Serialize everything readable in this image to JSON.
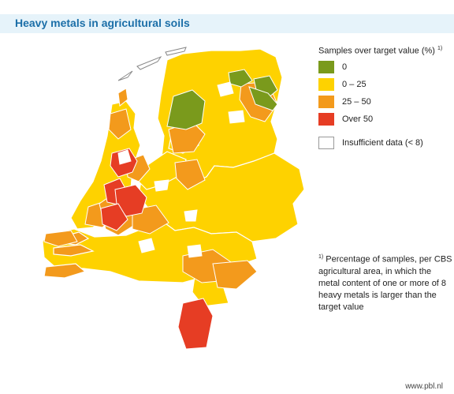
{
  "title": "Heavy metals in agricultural soils",
  "legend": {
    "title": "Samples over target value (%)",
    "note_marker": "1)",
    "items": [
      {
        "label": "0",
        "color": "#7a9a1c"
      },
      {
        "label": "0 – 25",
        "color": "#fed200"
      },
      {
        "label": "25 – 50",
        "color": "#f39a1c"
      },
      {
        "label": "Over 50",
        "color": "#e63d24"
      }
    ],
    "insufficient": {
      "label": "Insufficient data (< 8)",
      "color": "#ffffff"
    }
  },
  "footnote": {
    "marker": "1)",
    "text": "Percentage of samples, per CBS agricultural area, in which the metal content of one or more of 8 heavy metals is larger than the target value"
  },
  "source": "www.pbl.nl",
  "map": {
    "water_color": "#ffffff",
    "border_color": "#ffffff"
  }
}
